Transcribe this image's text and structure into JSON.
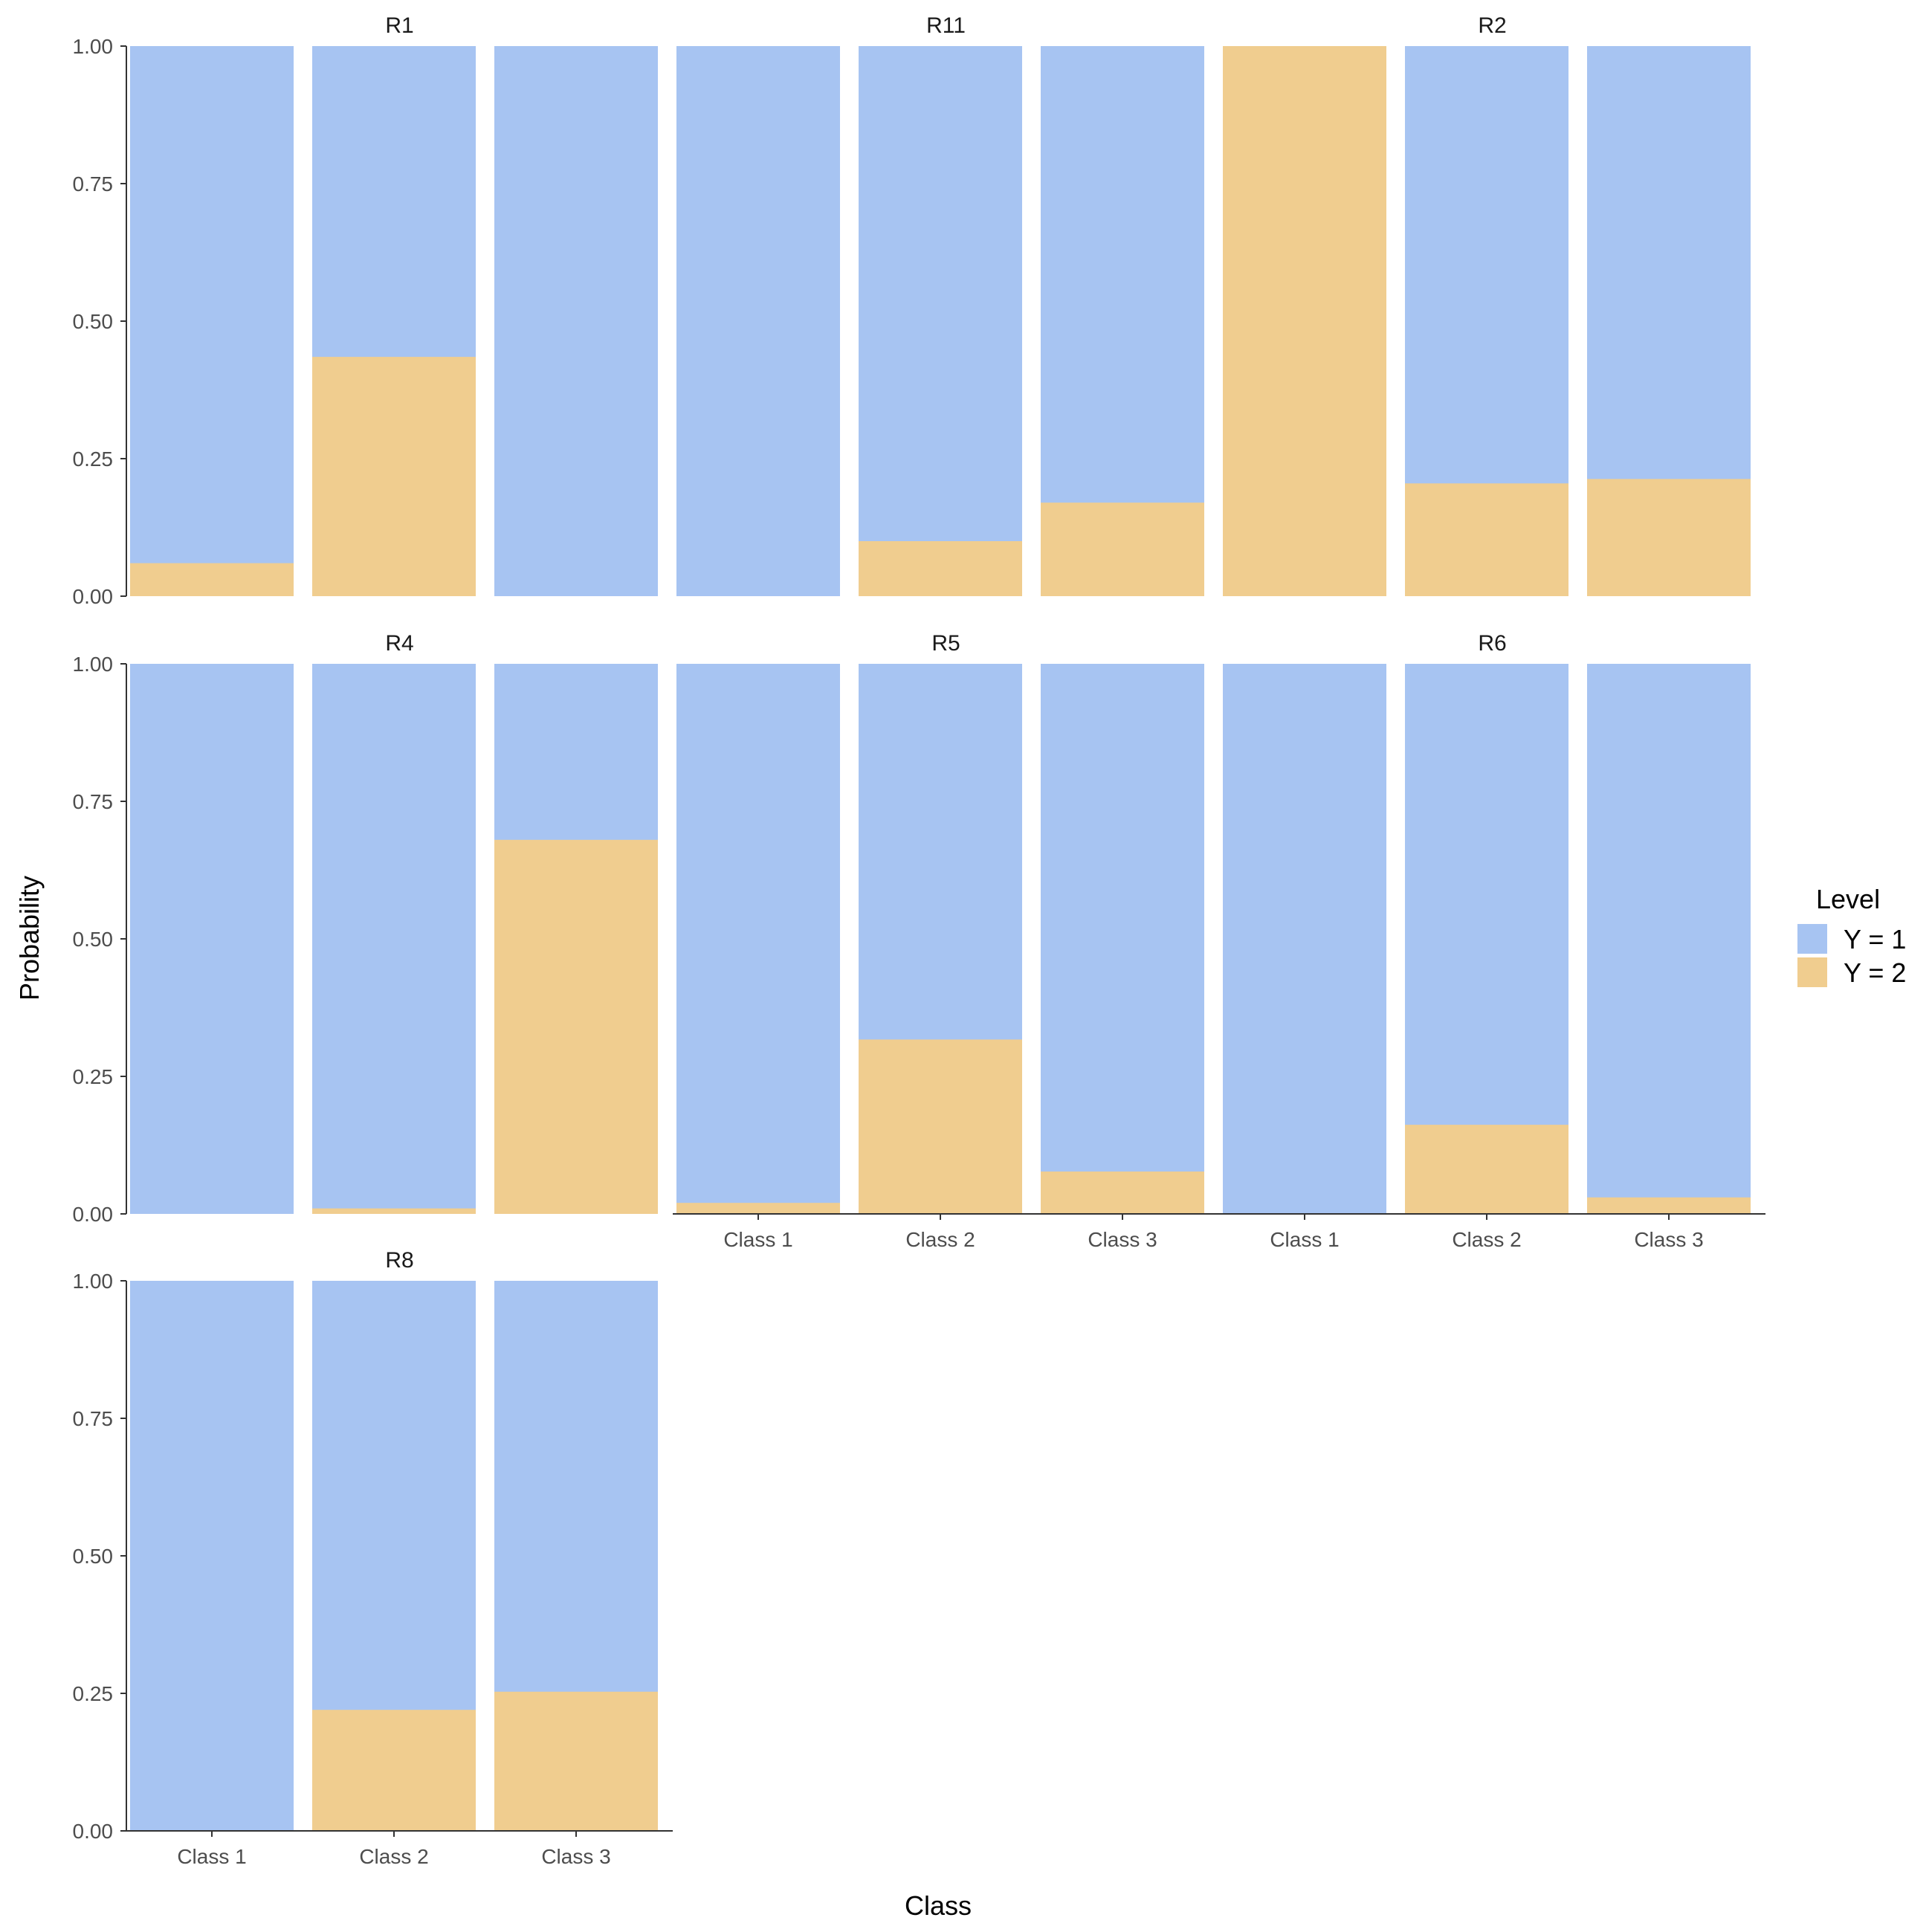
{
  "chart_data": {
    "type": "bar",
    "stacked": true,
    "title": "",
    "xlabel": "Class",
    "ylabel": "Probability",
    "ylim": [
      0,
      1
    ],
    "yticks": [
      "0.00",
      "0.25",
      "0.50",
      "0.75",
      "1.00"
    ],
    "categories": [
      "Class 1",
      "Class 2",
      "Class 3"
    ],
    "legend": {
      "title": "Level",
      "position": "right",
      "entries": [
        {
          "label": "Y = 1",
          "color": "#a7c4f2"
        },
        {
          "label": "Y = 2",
          "color": "#f0cd8f"
        }
      ]
    },
    "panels": [
      {
        "name": "R1",
        "y2": [
          0.06,
          0.435,
          0.0
        ]
      },
      {
        "name": "R11",
        "y2": [
          0.0,
          0.1,
          0.17
        ]
      },
      {
        "name": "R2",
        "y2": [
          1.0,
          0.205,
          0.213
        ]
      },
      {
        "name": "R4",
        "y2": [
          0.0,
          0.01,
          0.68
        ]
      },
      {
        "name": "R5",
        "y2": [
          0.02,
          0.317,
          0.077
        ]
      },
      {
        "name": "R6",
        "y2": [
          0.0,
          0.162,
          0.03
        ]
      },
      {
        "name": "R8",
        "y2": [
          0.0,
          0.22,
          0.253
        ]
      }
    ]
  }
}
